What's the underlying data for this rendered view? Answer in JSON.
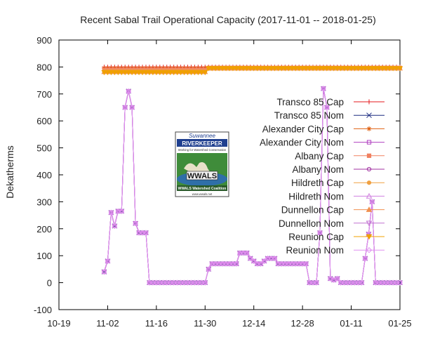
{
  "chart_data": {
    "type": "line",
    "title": "Recent Sabal Trail Operational Capacity (2017-11-01 -- 2018-01-25)",
    "xlabel": "",
    "ylabel": "Dekatherms",
    "xlim": [
      "2017-10-19",
      "2018-01-25"
    ],
    "ylim": [
      -100,
      900
    ],
    "yticks": [
      -100,
      0,
      100,
      200,
      300,
      400,
      500,
      600,
      700,
      800,
      900
    ],
    "xticks": [
      {
        "date": "2017-10-19",
        "label": "10-19"
      },
      {
        "date": "2017-11-02",
        "label": "11-02"
      },
      {
        "date": "2017-11-16",
        "label": "11-16"
      },
      {
        "date": "2017-11-30",
        "label": "11-30"
      },
      {
        "date": "2017-12-14",
        "label": "12-14"
      },
      {
        "date": "2017-12-28",
        "label": "12-28"
      },
      {
        "date": "2018-01-11",
        "label": "01-11"
      },
      {
        "date": "2018-01-25",
        "label": "01-25"
      }
    ],
    "grid": false,
    "legend_position": "right",
    "series": [
      {
        "name": "Transco 85 Cap",
        "color": "#e41a1c",
        "marker": "plus",
        "kind": "cap",
        "cap_before": 800,
        "cap_after": 800
      },
      {
        "name": "Transco 85 Nom",
        "color": "#1a2a80",
        "marker": "x",
        "kind": "nom"
      },
      {
        "name": "Alexander City Cap",
        "color": "#e06010",
        "marker": "asterisk",
        "kind": "cap",
        "cap_before": 795,
        "cap_after": 798
      },
      {
        "name": "Alexander City Nom",
        "color": "#b040c0",
        "marker": "square-open",
        "kind": "nom"
      },
      {
        "name": "Albany Cap",
        "color": "#f08060",
        "marker": "square-filled",
        "kind": "cap",
        "cap_before": 790,
        "cap_after": 797
      },
      {
        "name": "Albany Nom",
        "color": "#a030a0",
        "marker": "circle-open",
        "kind": "nom"
      },
      {
        "name": "Hildreth Cap",
        "color": "#f0a040",
        "marker": "circle-filled",
        "kind": "cap",
        "cap_before": 785,
        "cap_after": 796
      },
      {
        "name": "Hildreth Nom",
        "color": "#d080e0",
        "marker": "triangle-open",
        "kind": "nom"
      },
      {
        "name": "Dunnellon Cap",
        "color": "#f09050",
        "marker": "triangle-filled",
        "kind": "cap",
        "cap_before": 782,
        "cap_after": 795
      },
      {
        "name": "Dunnellon Nom",
        "color": "#c070d0",
        "marker": "triangle-down-open",
        "kind": "nom"
      },
      {
        "name": "Reunion Cap",
        "color": "#f0a000",
        "marker": "triangle-down-filled",
        "kind": "cap",
        "cap_before": 780,
        "cap_after": 795
      },
      {
        "name": "Reunion Nom",
        "color": "#e090f0",
        "marker": "diamond-open",
        "kind": "nom"
      }
    ],
    "cap_dates": [
      "2017-11-01",
      "2017-11-30",
      "2017-12-01",
      "2018-01-25"
    ],
    "nom_points": [
      [
        "2017-11-01",
        40
      ],
      [
        "2017-11-02",
        80
      ],
      [
        "2017-11-03",
        260
      ],
      [
        "2017-11-04",
        210
      ],
      [
        "2017-11-05",
        265
      ],
      [
        "2017-11-06",
        265
      ],
      [
        "2017-11-07",
        650
      ],
      [
        "2017-11-08",
        710
      ],
      [
        "2017-11-09",
        650
      ],
      [
        "2017-11-10",
        220
      ],
      [
        "2017-11-11",
        185
      ],
      [
        "2017-11-12",
        185
      ],
      [
        "2017-11-13",
        185
      ],
      [
        "2017-11-14",
        0
      ],
      [
        "2017-11-15",
        0
      ],
      [
        "2017-11-16",
        0
      ],
      [
        "2017-11-20",
        0
      ],
      [
        "2017-11-25",
        0
      ],
      [
        "2017-11-29",
        0
      ],
      [
        "2017-11-30",
        0
      ],
      [
        "2017-12-01",
        50
      ],
      [
        "2017-12-02",
        70
      ],
      [
        "2017-12-04",
        70
      ],
      [
        "2017-12-07",
        70
      ],
      [
        "2017-12-09",
        70
      ],
      [
        "2017-12-10",
        110
      ],
      [
        "2017-12-12",
        110
      ],
      [
        "2017-12-13",
        90
      ],
      [
        "2017-12-15",
        70
      ],
      [
        "2017-12-16",
        70
      ],
      [
        "2017-12-17",
        80
      ],
      [
        "2017-12-18",
        90
      ],
      [
        "2017-12-20",
        90
      ],
      [
        "2017-12-21",
        70
      ],
      [
        "2017-12-24",
        70
      ],
      [
        "2017-12-26",
        70
      ],
      [
        "2017-12-29",
        70
      ],
      [
        "2017-12-30",
        0
      ],
      [
        "2018-01-01",
        0
      ],
      [
        "2018-01-02",
        185
      ],
      [
        "2018-01-03",
        720
      ],
      [
        "2018-01-04",
        650
      ],
      [
        "2018-01-05",
        15
      ],
      [
        "2018-01-06",
        10
      ],
      [
        "2018-01-07",
        15
      ],
      [
        "2018-01-08",
        0
      ],
      [
        "2018-01-10",
        0
      ],
      [
        "2018-01-14",
        0
      ],
      [
        "2018-01-16",
        180
      ],
      [
        "2018-01-17",
        300
      ],
      [
        "2018-01-18",
        0
      ],
      [
        "2018-01-21",
        0
      ],
      [
        "2018-01-25",
        0
      ]
    ]
  },
  "logo": {
    "line1": "Suwannee",
    "line2": "RIVERKEEPER",
    "tagline": "Working for Watershed Conservation",
    "name": "WWALS",
    "subtitle": "WWALS Watershed Coalition",
    "url": "www.wwals.net"
  }
}
